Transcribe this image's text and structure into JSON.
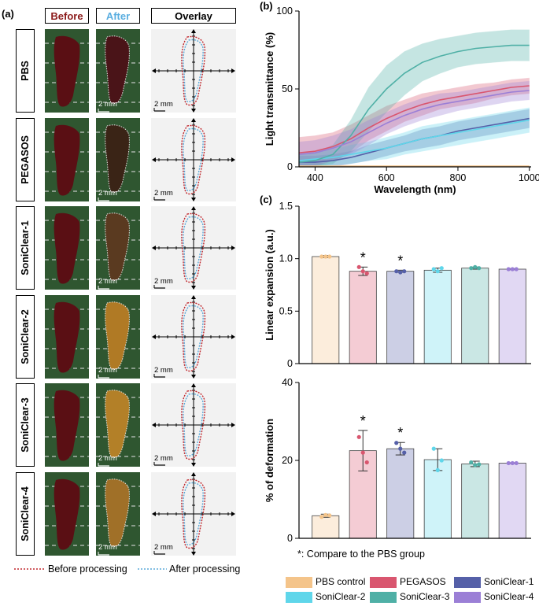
{
  "panel_a": {
    "label": "(a)",
    "headers": {
      "before": "Before",
      "after": "After",
      "overlay": "Overlay"
    },
    "rows": [
      "PBS",
      "PEGASOS",
      "SoniClear-1",
      "SoniClear-2",
      "SoniClear-3",
      "SoniClear-4"
    ],
    "scale_text": "2 mm",
    "legend": {
      "before": "Before processing",
      "after": "After processing"
    },
    "colors": {
      "before_header": "#8b1a1a",
      "after_header": "#5aaee0",
      "before_line": "#c0272d",
      "after_line": "#5aa8d8"
    }
  },
  "panel_b": {
    "label": "(b)"
  },
  "panel_c": {
    "label": "(c)"
  },
  "note": "*: Compare to the PBS group",
  "legend": [
    {
      "name": "PBS control",
      "color": "#f4c48a"
    },
    {
      "name": "PEGASOS",
      "color": "#d9566f"
    },
    {
      "name": "SoniClear-1",
      "color": "#5560a8"
    },
    {
      "name": "SoniClear-2",
      "color": "#5fd6ea"
    },
    {
      "name": "SoniClear-3",
      "color": "#4fb0a6"
    },
    {
      "name": "SoniClear-4",
      "color": "#9b7fd6"
    }
  ],
  "chart_data": [
    {
      "type": "line",
      "title": "",
      "xlabel": "Wavelength (nm)",
      "ylabel": "Light transmittance (%)",
      "xlim": [
        355,
        1005
      ],
      "ylim": [
        0,
        100
      ],
      "xticks": [
        400,
        600,
        800,
        1000
      ],
      "yticks": [
        0,
        50,
        100
      ],
      "x": [
        355,
        400,
        450,
        500,
        550,
        600,
        650,
        700,
        750,
        800,
        850,
        900,
        950,
        1000
      ],
      "series": [
        {
          "name": "PBS control",
          "color": "#f4c48a",
          "values": [
            0.5,
            0.5,
            0.5,
            0.5,
            0.5,
            0.5,
            0.5,
            0.5,
            0.5,
            0.5,
            0.5,
            0.5,
            0.5,
            0.5
          ],
          "band": [
            0.3,
            0.3,
            0.3,
            0.3,
            0.3,
            0.3,
            0.3,
            0.3,
            0.3,
            0.3,
            0.3,
            0.3,
            0.3,
            0.3
          ]
        },
        {
          "name": "PEGASOS",
          "color": "#d9566f",
          "values": [
            9,
            10,
            13,
            18,
            25,
            31,
            36,
            40,
            43,
            45,
            47,
            49,
            51,
            52
          ],
          "band": [
            10,
            10,
            9,
            9,
            8,
            8,
            7,
            7,
            6,
            6,
            6,
            5,
            5,
            5
          ]
        },
        {
          "name": "SoniClear-1",
          "color": "#5560a8",
          "values": [
            3,
            3,
            4,
            6,
            9,
            12,
            15,
            18,
            20,
            23,
            25,
            27,
            29,
            31
          ],
          "band": [
            4,
            4,
            4,
            4,
            5,
            5,
            5,
            6,
            6,
            6,
            6,
            6,
            6,
            6
          ]
        },
        {
          "name": "SoniClear-2",
          "color": "#5fd6ea",
          "values": [
            4,
            5,
            6,
            8,
            10,
            12,
            15,
            18,
            20,
            22,
            24,
            26,
            28,
            30
          ],
          "band": [
            5,
            5,
            5,
            6,
            6,
            7,
            7,
            8,
            8,
            8,
            8,
            8,
            8,
            8
          ]
        },
        {
          "name": "SoniClear-3",
          "color": "#4fb0a6",
          "values": [
            3,
            4,
            8,
            20,
            37,
            50,
            60,
            67,
            71,
            74,
            76,
            77,
            78,
            78
          ],
          "band": [
            5,
            5,
            6,
            10,
            14,
            15,
            14,
            12,
            11,
            10,
            10,
            10,
            10,
            10
          ]
        },
        {
          "name": "SoniClear-4",
          "color": "#9b7fd6",
          "values": [
            8,
            9,
            12,
            16,
            22,
            28,
            33,
            37,
            40,
            42,
            44,
            46,
            48,
            49
          ],
          "band": [
            8,
            8,
            8,
            8,
            8,
            7,
            7,
            7,
            7,
            6,
            6,
            6,
            6,
            6
          ]
        }
      ]
    },
    {
      "type": "bar",
      "title": "",
      "xlabel": "",
      "ylabel": "Linear expansion (a.u.)",
      "ylim": [
        0,
        1.5
      ],
      "yticks": [
        "0",
        "0.5",
        "1.0",
        "1.5"
      ],
      "categories": [
        "PBS control",
        "PEGASOS",
        "SoniClear-1",
        "SoniClear-2",
        "SoniClear-3",
        "SoniClear-4"
      ],
      "values": [
        1.02,
        0.88,
        0.88,
        0.89,
        0.91,
        0.9
      ],
      "errors": [
        0.01,
        0.04,
        0.01,
        0.02,
        0.01,
        0.005
      ],
      "points": [
        [
          1.02,
          1.02,
          1.02
        ],
        [
          0.92,
          0.88,
          0.86
        ],
        [
          0.88,
          0.87,
          0.88
        ],
        [
          0.9,
          0.88,
          0.91
        ],
        [
          0.91,
          0.92,
          0.91
        ],
        [
          0.9,
          0.9,
          0.9
        ]
      ],
      "significance": [
        "",
        "*",
        "*",
        "",
        "",
        ""
      ]
    },
    {
      "type": "bar",
      "title": "",
      "xlabel": "",
      "ylabel": "% of deformation",
      "ylim": [
        0,
        40
      ],
      "yticks": [
        "0",
        "20",
        "40"
      ],
      "categories": [
        "PBS control",
        "PEGASOS",
        "SoniClear-1",
        "SoniClear-2",
        "SoniClear-3",
        "SoniClear-4"
      ],
      "values": [
        5.8,
        22.5,
        23.0,
        20.2,
        19.1,
        19.3
      ],
      "errors": [
        0.4,
        5.2,
        1.6,
        2.8,
        0.7,
        0.1
      ],
      "points": [
        [
          5.5,
          6.0,
          5.9
        ],
        [
          26.0,
          22.0,
          19.5
        ],
        [
          24.5,
          23.0,
          22.0
        ],
        [
          23.0,
          17.5,
          20.0
        ],
        [
          19.5,
          18.8,
          19.0
        ],
        [
          19.3,
          19.3,
          19.3
        ]
      ],
      "significance": [
        "",
        "*",
        "*",
        "",
        "",
        ""
      ]
    }
  ]
}
